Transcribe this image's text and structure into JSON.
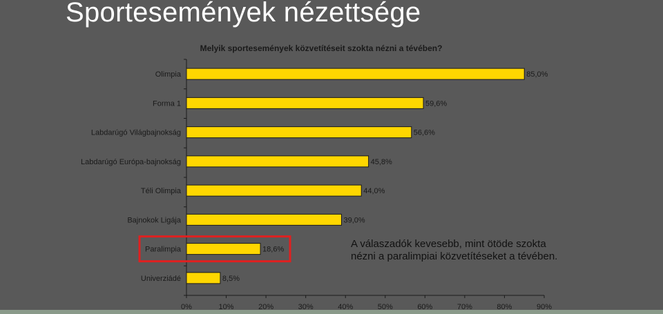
{
  "slide_title": "Sportesemények nézettsége",
  "note": "A válaszadók kevesebb, mint ötöde szokta nézni a paralimpiai közvetítéseket a tévében.",
  "colors": {
    "bar_fill": "#FFD700",
    "bar_stroke": "#1a1a1a",
    "background": "#595959",
    "highlight": "#e02020",
    "text": "#1a1a1a"
  },
  "highlighted_category": "Paralimpia",
  "chart_data": {
    "type": "bar",
    "orientation": "horizontal",
    "title": "Melyik sportesemények közvetítéseit szokta nézni a tévében?",
    "categories": [
      "Olimpia",
      "Forma 1",
      "Labdarúgó Világbajnokság",
      "Labdarúgó Európa-bajnokság",
      "Téli Olimpia",
      "Bajnokok Ligája",
      "Paralimpia",
      "Univerziádé"
    ],
    "values": [
      85.0,
      59.6,
      56.6,
      45.8,
      44.0,
      39.0,
      18.6,
      8.5
    ],
    "data_labels": [
      "85,0%",
      "59,6%",
      "56,6%",
      "45,8%",
      "44,0%",
      "39,0%",
      "18,6%",
      "8,5%"
    ],
    "xlim": [
      0,
      90
    ],
    "x_ticks": [
      0,
      10,
      20,
      30,
      40,
      50,
      60,
      70,
      80,
      90
    ],
    "x_tick_labels": [
      "0%",
      "10%",
      "20%",
      "30%",
      "40%",
      "50%",
      "60%",
      "70%",
      "80%",
      "90%"
    ],
    "xlabel": "",
    "ylabel": "",
    "grid": false,
    "legend": "none"
  }
}
